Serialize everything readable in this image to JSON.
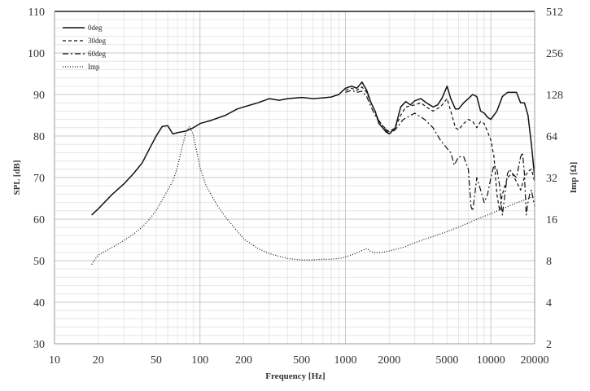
{
  "chart_data": {
    "type": "line",
    "title": "",
    "xlabel": "Frequency [Hz]",
    "ylabel": "SPL [dB]",
    "y2label": "Imp [Ω]",
    "x_scale": "log",
    "xlim": [
      10,
      20000
    ],
    "ylim": [
      30,
      110
    ],
    "y2lim": [
      2,
      512
    ],
    "y2_scale": "log2",
    "grid": true,
    "legend_position": "top-left",
    "x_ticks": [
      "10",
      "20",
      "50",
      "100",
      "200",
      "500",
      "1000",
      "2000",
      "5000",
      "10000",
      "20000"
    ],
    "y_ticks": [
      "30",
      "40",
      "50",
      "60",
      "70",
      "80",
      "90",
      "100",
      "110"
    ],
    "y2_ticks": [
      "2",
      "4",
      "8",
      "16",
      "32",
      "64",
      "128",
      "256",
      "512"
    ],
    "series": [
      {
        "name": "0deg",
        "axis": "left",
        "style": "solid",
        "points": [
          [
            18,
            61
          ],
          [
            20,
            62.5
          ],
          [
            25,
            66
          ],
          [
            30,
            68.5
          ],
          [
            35,
            71
          ],
          [
            40,
            73.5
          ],
          [
            45,
            77
          ],
          [
            50,
            80
          ],
          [
            55,
            82.3
          ],
          [
            60,
            82.5
          ],
          [
            65,
            80.5
          ],
          [
            70,
            80.8
          ],
          [
            80,
            81.2
          ],
          [
            90,
            82
          ],
          [
            100,
            83
          ],
          [
            120,
            83.8
          ],
          [
            150,
            85
          ],
          [
            180,
            86.5
          ],
          [
            200,
            87
          ],
          [
            250,
            88
          ],
          [
            300,
            89
          ],
          [
            350,
            88.6
          ],
          [
            400,
            89
          ],
          [
            500,
            89.3
          ],
          [
            600,
            89
          ],
          [
            700,
            89.2
          ],
          [
            800,
            89.4
          ],
          [
            900,
            90
          ],
          [
            1000,
            91.5
          ],
          [
            1100,
            92
          ],
          [
            1200,
            91.5
          ],
          [
            1300,
            93
          ],
          [
            1400,
            91
          ],
          [
            1500,
            88
          ],
          [
            1600,
            86
          ],
          [
            1700,
            83
          ],
          [
            1800,
            82
          ],
          [
            1900,
            81
          ],
          [
            2000,
            80.5
          ],
          [
            2200,
            82
          ],
          [
            2400,
            87
          ],
          [
            2600,
            88.3
          ],
          [
            2800,
            87.5
          ],
          [
            3000,
            88.5
          ],
          [
            3300,
            89
          ],
          [
            3600,
            88
          ],
          [
            4000,
            87
          ],
          [
            4300,
            87.5
          ],
          [
            4600,
            89
          ],
          [
            5000,
            92
          ],
          [
            5300,
            89
          ],
          [
            5700,
            86.5
          ],
          [
            6000,
            86.5
          ],
          [
            6500,
            88
          ],
          [
            7000,
            89
          ],
          [
            7500,
            90
          ],
          [
            8000,
            89.5
          ],
          [
            8500,
            86
          ],
          [
            9000,
            85.5
          ],
          [
            9500,
            84.5
          ],
          [
            10000,
            84
          ],
          [
            11000,
            86
          ],
          [
            12000,
            89.5
          ],
          [
            13000,
            90.5
          ],
          [
            14000,
            90.5
          ],
          [
            15000,
            90.5
          ],
          [
            16000,
            88
          ],
          [
            17000,
            88
          ],
          [
            18000,
            85
          ],
          [
            19000,
            78
          ],
          [
            20000,
            70
          ]
        ]
      },
      {
        "name": "30deg",
        "axis": "left",
        "style": "dashed",
        "points": [
          [
            1000,
            91
          ],
          [
            1100,
            91.5
          ],
          [
            1200,
            91
          ],
          [
            1300,
            91.8
          ],
          [
            1400,
            90.5
          ],
          [
            1500,
            88
          ],
          [
            1600,
            86
          ],
          [
            1700,
            83.5
          ],
          [
            1800,
            82.5
          ],
          [
            2000,
            81
          ],
          [
            2200,
            82
          ],
          [
            2400,
            85
          ],
          [
            2600,
            87
          ],
          [
            3000,
            87.5
          ],
          [
            3300,
            88
          ],
          [
            3600,
            87
          ],
          [
            4000,
            86
          ],
          [
            4500,
            87
          ],
          [
            5000,
            89
          ],
          [
            5300,
            86
          ],
          [
            5700,
            82
          ],
          [
            6000,
            81.5
          ],
          [
            6500,
            83
          ],
          [
            7000,
            84
          ],
          [
            7500,
            83.5
          ],
          [
            8000,
            82
          ],
          [
            8500,
            83.5
          ],
          [
            9000,
            83
          ],
          [
            9500,
            81
          ],
          [
            10000,
            79
          ],
          [
            10500,
            75
          ],
          [
            11000,
            66
          ],
          [
            11500,
            62
          ],
          [
            12000,
            66
          ],
          [
            13000,
            70
          ],
          [
            14000,
            71
          ],
          [
            15000,
            69
          ],
          [
            16000,
            67
          ],
          [
            17000,
            70
          ],
          [
            18000,
            71.5
          ],
          [
            19000,
            72
          ],
          [
            20000,
            69
          ]
        ]
      },
      {
        "name": "60deg",
        "axis": "left",
        "style": "dashdot",
        "points": [
          [
            1000,
            90.5
          ],
          [
            1100,
            91
          ],
          [
            1200,
            90.5
          ],
          [
            1300,
            90.8
          ],
          [
            1400,
            89.5
          ],
          [
            1500,
            87
          ],
          [
            1600,
            85
          ],
          [
            1800,
            82.5
          ],
          [
            2000,
            80.5
          ],
          [
            2200,
            81.5
          ],
          [
            2500,
            84
          ],
          [
            3000,
            85.5
          ],
          [
            3500,
            84
          ],
          [
            4000,
            82
          ],
          [
            4500,
            79
          ],
          [
            5000,
            77
          ],
          [
            5300,
            76
          ],
          [
            5600,
            73
          ],
          [
            6000,
            75
          ],
          [
            6500,
            75
          ],
          [
            7000,
            72
          ],
          [
            7300,
            63
          ],
          [
            7500,
            62
          ],
          [
            8000,
            70
          ],
          [
            8500,
            67
          ],
          [
            9000,
            64
          ],
          [
            9500,
            66
          ],
          [
            10000,
            70
          ],
          [
            10500,
            73
          ],
          [
            11000,
            72
          ],
          [
            11500,
            68
          ],
          [
            12000,
            61
          ],
          [
            12500,
            66
          ],
          [
            13000,
            71
          ],
          [
            13500,
            72
          ],
          [
            14000,
            71
          ],
          [
            15000,
            70
          ],
          [
            16000,
            75
          ],
          [
            16500,
            76
          ],
          [
            17000,
            71
          ],
          [
            17500,
            61
          ],
          [
            18000,
            64
          ],
          [
            18500,
            66
          ],
          [
            19000,
            67
          ],
          [
            20000,
            63
          ]
        ]
      },
      {
        "name": "Imp",
        "axis": "right",
        "style": "dotted",
        "points": [
          [
            18,
            7.5
          ],
          [
            19,
            8.2
          ],
          [
            20,
            8.8
          ],
          [
            25,
            10
          ],
          [
            30,
            11.2
          ],
          [
            35,
            12.5
          ],
          [
            40,
            14
          ],
          [
            45,
            16
          ],
          [
            50,
            18.5
          ],
          [
            55,
            22
          ],
          [
            60,
            26
          ],
          [
            65,
            30
          ],
          [
            70,
            38
          ],
          [
            75,
            52
          ],
          [
            80,
            68
          ],
          [
            85,
            75
          ],
          [
            90,
            65
          ],
          [
            100,
            38
          ],
          [
            110,
            28
          ],
          [
            130,
            20.5
          ],
          [
            150,
            16.5
          ],
          [
            200,
            11.5
          ],
          [
            250,
            9.8
          ],
          [
            300,
            9
          ],
          [
            350,
            8.6
          ],
          [
            400,
            8.3
          ],
          [
            500,
            8.1
          ],
          [
            600,
            8.1
          ],
          [
            700,
            8.2
          ],
          [
            800,
            8.2
          ],
          [
            900,
            8.3
          ],
          [
            1000,
            8.5
          ],
          [
            1200,
            9.1
          ],
          [
            1300,
            9.5
          ],
          [
            1400,
            9.8
          ],
          [
            1500,
            9.3
          ],
          [
            1600,
            9.1
          ],
          [
            1800,
            9.2
          ],
          [
            2000,
            9.4
          ],
          [
            2500,
            10
          ],
          [
            3000,
            10.8
          ],
          [
            4000,
            12
          ],
          [
            5000,
            13
          ],
          [
            6000,
            14
          ],
          [
            7000,
            15
          ],
          [
            8000,
            16
          ],
          [
            10000,
            17.5
          ],
          [
            12000,
            19
          ],
          [
            15000,
            21
          ],
          [
            17000,
            22
          ],
          [
            20000,
            23.5
          ]
        ]
      }
    ]
  }
}
